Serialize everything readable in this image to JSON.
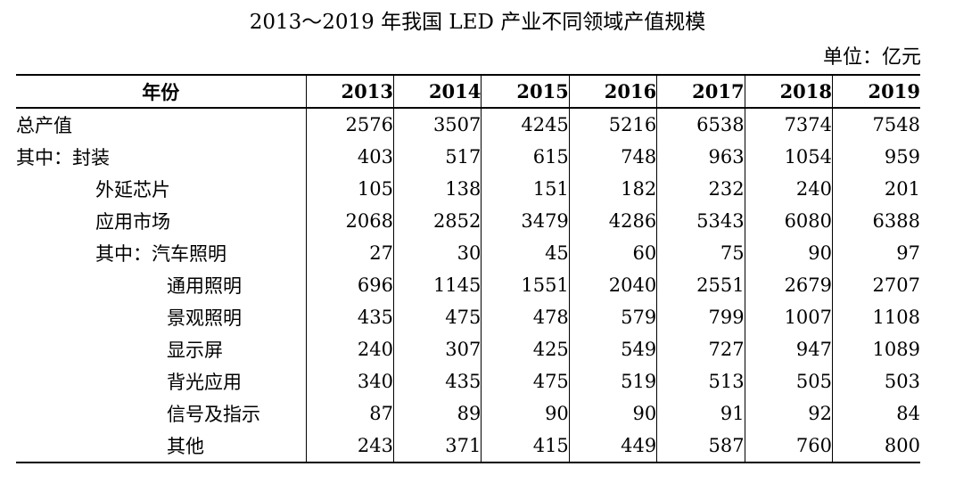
{
  "title": "2013～2019 年我国 LED 产业不同领域产值规模",
  "unit": "单位：亿元",
  "table": {
    "header_label": "年份",
    "years": [
      "2013",
      "2014",
      "2015",
      "2016",
      "2017",
      "2018",
      "2019"
    ],
    "rows": [
      {
        "label": "总产值",
        "values": [
          "2576",
          "3507",
          "4245",
          "5216",
          "6538",
          "7374",
          "7548"
        ]
      },
      {
        "label": "其中：封装",
        "values": [
          "403",
          "517",
          "615",
          "748",
          "963",
          "1054",
          "959"
        ]
      },
      {
        "label": "外延芯片",
        "values": [
          "105",
          "138",
          "151",
          "182",
          "232",
          "240",
          "201"
        ]
      },
      {
        "label": "应用市场",
        "values": [
          "2068",
          "2852",
          "3479",
          "4286",
          "5343",
          "6080",
          "6388"
        ]
      },
      {
        "label": "其中：汽车照明",
        "values": [
          "27",
          "30",
          "45",
          "60",
          "75",
          "90",
          "97"
        ]
      },
      {
        "label": "通用照明",
        "values": [
          "696",
          "1145",
          "1551",
          "2040",
          "2551",
          "2679",
          "2707"
        ]
      },
      {
        "label": "景观照明",
        "values": [
          "435",
          "475",
          "478",
          "579",
          "799",
          "1007",
          "1108"
        ]
      },
      {
        "label": "显示屏",
        "values": [
          "240",
          "307",
          "425",
          "549",
          "727",
          "947",
          "1089"
        ]
      },
      {
        "label": "背光应用",
        "values": [
          "340",
          "435",
          "475",
          "519",
          "513",
          "505",
          "503"
        ]
      },
      {
        "label": "信号及指示",
        "values": [
          "87",
          "89",
          "90",
          "90",
          "91",
          "92",
          "84"
        ]
      },
      {
        "label": "其他",
        "values": [
          "243",
          "371",
          "415",
          "449",
          "587",
          "760",
          "800"
        ]
      }
    ]
  }
}
